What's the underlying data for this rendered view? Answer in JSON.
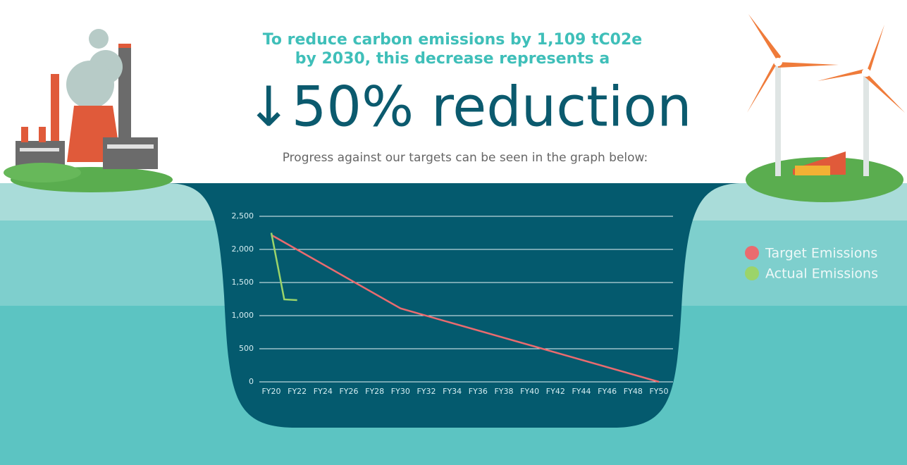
{
  "header": {
    "lead_lines": [
      "To reduce carbon emissions by 1,109 tC02e",
      "by 2030, this decrease represents a"
    ],
    "headline": "↓50% reduction",
    "subline": "Progress against our targets can be seen in the graph below:"
  },
  "chart_data": {
    "type": "line",
    "xlim": [
      20,
      50
    ],
    "xticks": [
      {
        "value": 20,
        "label": "FY20"
      },
      {
        "value": 22,
        "label": "FY22"
      },
      {
        "value": 24,
        "label": "FY24"
      },
      {
        "value": 26,
        "label": "FY26"
      },
      {
        "value": 28,
        "label": "FY28"
      },
      {
        "value": 30,
        "label": "FY30"
      },
      {
        "value": 32,
        "label": "FY32"
      },
      {
        "value": 34,
        "label": "FY34"
      },
      {
        "value": 36,
        "label": "FY36"
      },
      {
        "value": 38,
        "label": "FY38"
      },
      {
        "value": 40,
        "label": "FY40"
      },
      {
        "value": 42,
        "label": "FY42"
      },
      {
        "value": 44,
        "label": "FY44"
      },
      {
        "value": 46,
        "label": "FY46"
      },
      {
        "value": 48,
        "label": "FY48"
      },
      {
        "value": 50,
        "label": "FY50"
      }
    ],
    "ylim": [
      0,
      2500
    ],
    "yticks": [
      0,
      {
        "value": 500,
        "label": "500"
      },
      {
        "value": 1000,
        "label": "1,000"
      },
      {
        "value": 1500,
        "label": "1,500"
      },
      {
        "value": 2000,
        "label": "2,000"
      },
      {
        "value": 2500,
        "label": "2,500"
      }
    ],
    "grid": true,
    "legend": "right",
    "series": [
      {
        "name": "Target Emissions",
        "color": "#ea6b6f",
        "x": [
          20,
          30,
          50
        ],
        "values": [
          2218,
          1109,
          0
        ]
      },
      {
        "name": "Actual Emissions",
        "color": "#9bd46a",
        "x": [
          20,
          21,
          22
        ],
        "values": [
          2250,
          1245,
          1234
        ]
      }
    ]
  }
}
